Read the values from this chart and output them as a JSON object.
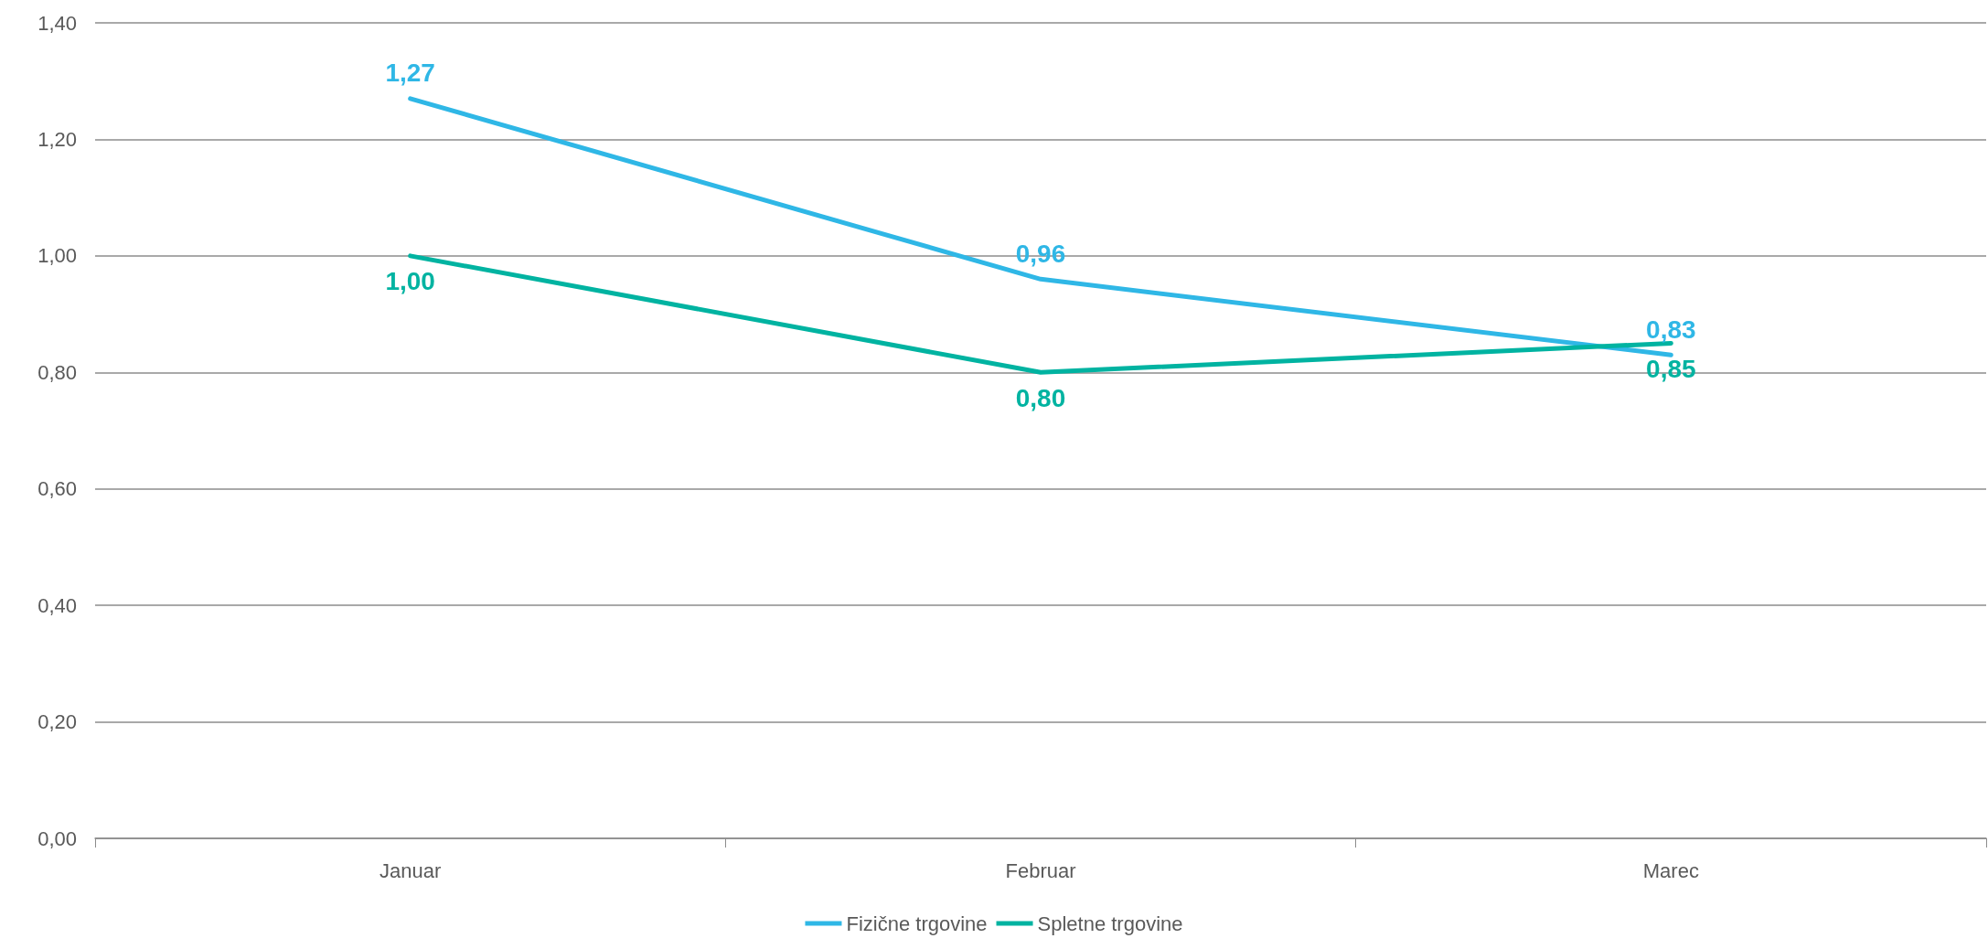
{
  "chart_data": {
    "type": "line",
    "categories": [
      "Januar",
      "Februar",
      "Marec"
    ],
    "series": [
      {
        "name": "Fizične trgovine",
        "color": "#2fb7e6",
        "values": [
          1.27,
          0.96,
          0.83
        ],
        "value_labels": [
          "1,27",
          "0,96",
          "0,83"
        ]
      },
      {
        "name": "Spletne trgovine",
        "color": "#00b3a1",
        "values": [
          1.0,
          0.8,
          0.85
        ],
        "value_labels": [
          "1,00",
          "0,80",
          "0,85"
        ]
      }
    ],
    "ylim": [
      0,
      1.4
    ],
    "yticks": [
      {
        "value": 0,
        "label": "0,00"
      },
      {
        "value": 0.2,
        "label": "0,20"
      },
      {
        "value": 0.4,
        "label": "0,40"
      },
      {
        "value": 0.6,
        "label": "0,60"
      },
      {
        "value": 0.8,
        "label": "0,80"
      },
      {
        "value": 1.0,
        "label": "1,00"
      },
      {
        "value": 1.2,
        "label": "1,20"
      },
      {
        "value": 1.4,
        "label": "1,40"
      }
    ],
    "grid": "y",
    "legend": "bottom",
    "marker": "none",
    "line_style": "solid"
  }
}
